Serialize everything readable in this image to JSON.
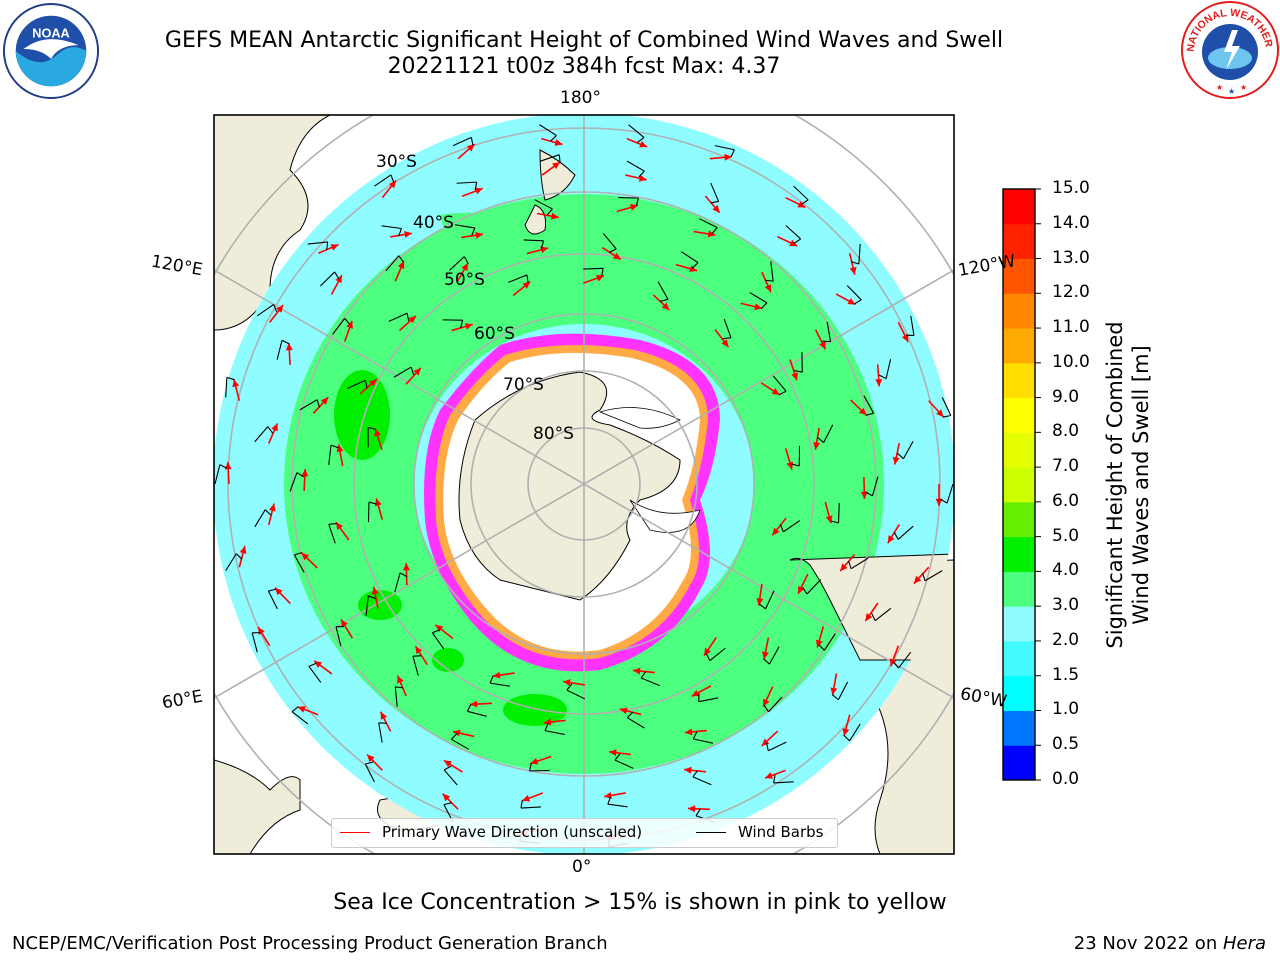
{
  "header": {
    "title_line1": "GEFS MEAN Antarctic Significant Height of Combined Wind Waves and Swell",
    "title_line2": "20221121 t00z 384h fcst   Max: 4.37"
  },
  "logos": {
    "noaa_text": "NOAA",
    "nws_text": "NATIONAL WEATHER SERVICE"
  },
  "map": {
    "projection": "south-polar-stereographic",
    "longitude_labels": {
      "top": "180°",
      "upper_left": "120°E",
      "upper_right": "120°W",
      "lower_left": "60°E",
      "lower_right": "60°W",
      "bottom": "0°"
    },
    "latitude_labels": [
      "30°S",
      "40°S",
      "50°S",
      "60°S",
      "70°S",
      "80°S"
    ],
    "colors": {
      "land": "#efedda",
      "ocean_low": "#8ffcff",
      "ocean_mid": "#4dff7f",
      "ocean_high": "#00ee00",
      "ice_fringe": "#ff33ff",
      "ice_interior": "#ffffff",
      "ice_edge": "#ffaa44",
      "arrow": "#ff0000",
      "barb": "#000000",
      "grid": "#b0b0b0"
    }
  },
  "colorbar": {
    "title_line1": "Significant Height of Combined",
    "title_line2": "Wind Waves and Swell [m]",
    "ticks": [
      "0.0",
      "0.5",
      "1.0",
      "1.5",
      "2.0",
      "3.0",
      "4.0",
      "5.0",
      "6.0",
      "7.0",
      "8.0",
      "9.0",
      "10.0",
      "11.0",
      "12.0",
      "13.0",
      "14.0",
      "15.0"
    ],
    "colors": [
      "#0000ff",
      "#0077ff",
      "#00ffff",
      "#44fcff",
      "#8ffcff",
      "#4dff7f",
      "#00ee00",
      "#66ee00",
      "#ccff00",
      "#e6ff00",
      "#ffff00",
      "#ffdd00",
      "#ffaa00",
      "#ff8800",
      "#ff5500",
      "#ff2200",
      "#ff0000"
    ]
  },
  "legend": {
    "wave_label": "Primary Wave Direction (unscaled)",
    "wind_label": "Wind Barbs",
    "wave_color": "#ff0000",
    "wind_color": "#000000"
  },
  "note": "Sea Ice Concentration > 15% is shown in pink to yellow",
  "footer": {
    "left": "NCEP/EMC/Verification Post Processing Product Generation Branch",
    "right_date": "23 Nov 2022 on ",
    "right_machine": "Hera"
  }
}
